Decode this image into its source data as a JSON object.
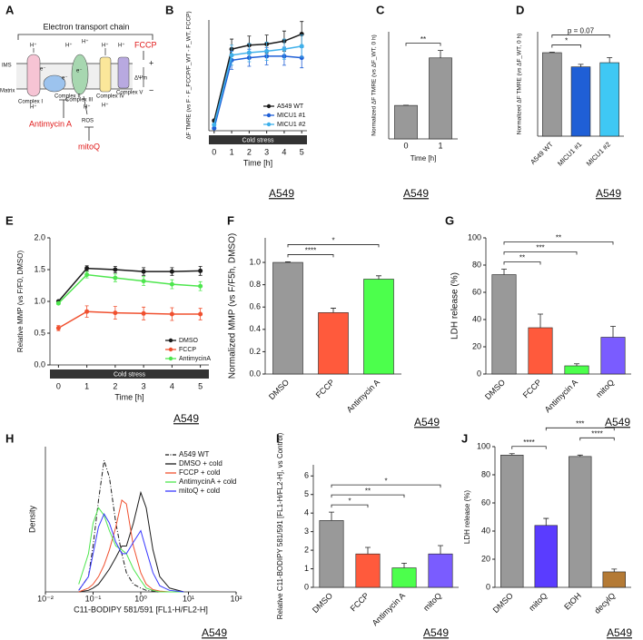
{
  "diagram": {
    "panel": "A",
    "title": "Electron transport chain",
    "ims": "IMS",
    "matrix": "Matrix",
    "complexes": [
      "Complex I",
      "Complex II",
      "Complex III",
      "Complex IV",
      "Complex V"
    ],
    "uncoupler": "FCCP",
    "potential": "ΔΨm",
    "plus": "+",
    "minus": "−",
    "inhibitor": "Antimycin A",
    "ros": "ROS",
    "antioxidant": "mitoQ",
    "protons": [
      "H⁺",
      "H⁺",
      "H⁺",
      "H⁺",
      "H⁺",
      "H⁺",
      "H⁺",
      "H⁺"
    ],
    "electrons": [
      "e⁻",
      "e⁻",
      "e⁻"
    ]
  },
  "chart_data": [
    {
      "panel": "B",
      "type": "line",
      "cell_line": "A549",
      "ylabel": "ΔF TMRE (vs F - F_FCCP/F_WT - F_WT, FCCP)",
      "xlabel": "Time [h]",
      "band_label": "Cold stress",
      "x": [
        0,
        1,
        2,
        3,
        4,
        5
      ],
      "xlim": [
        -0.3,
        5.3
      ],
      "xticks": [
        0,
        1,
        2,
        3,
        4,
        5
      ],
      "ylim": [
        0.8,
        3.0
      ],
      "legend": "lower right",
      "series": [
        {
          "name": "A549 WT",
          "color": "#1a1a1a",
          "values": [
            1.0,
            2.42,
            2.5,
            2.52,
            2.58,
            2.72
          ],
          "errors": [
            0.02,
            0.2,
            0.18,
            0.18,
            0.2,
            0.25
          ]
        },
        {
          "name": "MICU1 #1",
          "color": "#1f5fd6",
          "values": [
            0.85,
            2.2,
            2.25,
            2.28,
            2.28,
            2.25
          ],
          "errors": [
            0.02,
            0.18,
            0.17,
            0.17,
            0.18,
            0.2
          ]
        },
        {
          "name": "MICU1 #2",
          "color": "#3fb0ea",
          "values": [
            0.92,
            2.3,
            2.35,
            2.38,
            2.42,
            2.48
          ],
          "errors": [
            0.02,
            0.2,
            0.18,
            0.18,
            0.2,
            0.22
          ]
        }
      ]
    },
    {
      "panel": "C",
      "type": "bar",
      "cell_line": "A549",
      "ylabel": "Normalized ΔF TMRE (vs ΔF_WT, 0 h)",
      "xlabel": "Time [h]",
      "categories": [
        "0",
        "1"
      ],
      "values": [
        1.0,
        2.42
      ],
      "errors": [
        0.005,
        0.22
      ],
      "colors": [
        "#999999",
        "#999999"
      ],
      "ylim": [
        0,
        3.2
      ],
      "significance": [
        {
          "label": "**",
          "groups": [
            "0",
            "1"
          ]
        }
      ]
    },
    {
      "panel": "D",
      "type": "bar",
      "cell_line": "A549",
      "ylabel": "Normalized ΔF TMRE (vs ΔF_WT, 0 h)",
      "categories": [
        "A549 WT",
        "MICU1 #1",
        "MICU1 #2"
      ],
      "values": [
        1.0,
        0.83,
        0.88
      ],
      "errors": [
        0.005,
        0.03,
        0.06
      ],
      "colors": [
        "#999999",
        "#1f5fd6",
        "#3fc8f4"
      ],
      "ylim": [
        0,
        1.25
      ],
      "significance": [
        {
          "label": "*",
          "groups": [
            "A549 WT",
            "MICU1 #1"
          ]
        },
        {
          "label": "p = 0.07",
          "groups": [
            "A549 WT",
            "MICU1 #2"
          ]
        }
      ]
    },
    {
      "panel": "E",
      "type": "line",
      "cell_line": "A549",
      "ylabel": "Relative MMP (vs F/F0, DMSO)",
      "xlabel": "Time [h]",
      "band_label": "Cold stress",
      "x": [
        0,
        1,
        2,
        3,
        4,
        5
      ],
      "xlim": [
        -0.3,
        5.3
      ],
      "xticks": [
        0,
        1,
        2,
        3,
        4,
        5
      ],
      "ylim": [
        0,
        2
      ],
      "yticks": [
        {
          "value": 0,
          "label": "0.0"
        },
        0.5,
        {
          "value": 1,
          "label": "1.0"
        },
        1.5,
        {
          "value": 2,
          "label": "2.0"
        }
      ],
      "legend": "lower right",
      "series": [
        {
          "name": "DMSO",
          "color": "#1a1a1a",
          "values": [
            1.0,
            1.52,
            1.5,
            1.47,
            1.47,
            1.48
          ],
          "errors": [
            0.01,
            0.04,
            0.05,
            0.06,
            0.06,
            0.07
          ]
        },
        {
          "name": "FCCP",
          "color": "#f0502f",
          "values": [
            0.58,
            0.84,
            0.82,
            0.81,
            0.8,
            0.8
          ],
          "errors": [
            0.04,
            0.09,
            0.1,
            0.1,
            0.1,
            0.09
          ]
        },
        {
          "name": "AntimycinA",
          "color": "#4ee64e",
          "values": [
            0.97,
            1.42,
            1.37,
            1.32,
            1.27,
            1.24
          ],
          "errors": [
            0.02,
            0.05,
            0.06,
            0.07,
            0.07,
            0.07
          ]
        }
      ]
    },
    {
      "panel": "F",
      "type": "bar",
      "cell_line": "A549",
      "ylabel": "Normalized MMP (vs F/F5h, DMSO)",
      "categories": [
        "DMSO",
        "FCCP",
        "Antimycin A"
      ],
      "values": [
        1.0,
        0.55,
        0.85
      ],
      "errors": [
        0.005,
        0.04,
        0.03
      ],
      "colors": [
        "#999999",
        "#ff5a3c",
        "#4cff4c"
      ],
      "ylim": [
        0,
        1.22
      ],
      "yticks": [
        {
          "value": 0,
          "label": "0.0"
        },
        0.2,
        0.4,
        0.6,
        0.8,
        {
          "value": 1,
          "label": "1.0"
        }
      ],
      "significance": [
        {
          "label": "****",
          "groups": [
            "DMSO",
            "FCCP"
          ]
        },
        {
          "label": "*",
          "groups": [
            "DMSO",
            "Antimycin A"
          ]
        }
      ]
    },
    {
      "panel": "G",
      "type": "bar",
      "cell_line": "A549",
      "ylabel": "LDH release (%)",
      "categories": [
        "DMSO",
        "FCCP",
        "Antimycin A",
        "mitoQ"
      ],
      "values": [
        73,
        34,
        6,
        27
      ],
      "errors": [
        4,
        10,
        1.5,
        8
      ],
      "colors": [
        "#999999",
        "#ff5a3c",
        "#4cff4c",
        "#7a5cff"
      ],
      "ylim": [
        0,
        100
      ],
      "yticks": [
        0,
        20,
        40,
        60,
        80,
        100
      ],
      "significance": [
        {
          "label": "**",
          "groups": [
            "DMSO",
            "FCCP"
          ]
        },
        {
          "label": "***",
          "groups": [
            "DMSO",
            "Antimycin A"
          ]
        },
        {
          "label": "**",
          "groups": [
            "DMSO",
            "mitoQ"
          ]
        }
      ]
    },
    {
      "panel": "H",
      "type": "density",
      "cell_line": "A549",
      "ylabel": "Density",
      "xlabel": "C11-BODIPY 581/591 [FL1-H/FL2-H]",
      "xscale": "log",
      "x": [
        0.05,
        0.08,
        0.1,
        0.13,
        0.17,
        0.22,
        0.3,
        0.4,
        0.5,
        0.7,
        1,
        1.3,
        1.8,
        2.5,
        4,
        8
      ],
      "xlim": [
        0.01,
        100
      ],
      "ylim": [
        0,
        1.9
      ],
      "xticks": [
        {
          "value": 0.01,
          "label": "10⁻²"
        },
        {
          "value": 0.1,
          "label": "10⁻¹"
        },
        {
          "value": 1,
          "label": "10⁰"
        },
        {
          "value": 10,
          "label": "10¹"
        },
        {
          "value": 100,
          "label": "10²"
        }
      ],
      "legend": "upper right",
      "series": [
        {
          "name": "A549 WT",
          "color": "#1a1a1a",
          "line_style": "dashdot",
          "values": [
            0.02,
            0.2,
            0.6,
            1.2,
            1.72,
            1.5,
            0.9,
            0.5,
            0.25,
            0.1,
            0.05,
            0.02,
            0.01,
            0,
            0,
            0
          ]
        },
        {
          "name": "DMSO + cold",
          "color": "#1a1a1a",
          "values": [
            0,
            0.02,
            0.05,
            0.1,
            0.2,
            0.3,
            0.45,
            0.6,
            0.6,
            0.9,
            1.3,
            1.1,
            0.55,
            0.2,
            0.05,
            0
          ]
        },
        {
          "name": "FCCP + cold",
          "color": "#f0502f",
          "values": [
            0,
            0.05,
            0.1,
            0.2,
            0.35,
            0.55,
            0.85,
            1.2,
            1.15,
            0.6,
            0.25,
            0.1,
            0.03,
            0.01,
            0,
            0
          ]
        },
        {
          "name": "AntimycinA + cold",
          "color": "#4ee64e",
          "values": [
            0.1,
            0.5,
            0.9,
            1.1,
            1.0,
            0.8,
            0.6,
            0.55,
            0.5,
            0.3,
            0.15,
            0.05,
            0.02,
            0,
            0,
            0
          ]
        },
        {
          "name": "mitoQ + cold",
          "color": "#3a3aff",
          "values": [
            0.02,
            0.2,
            0.5,
            0.85,
            1.02,
            0.9,
            0.65,
            0.5,
            0.5,
            0.65,
            0.8,
            0.55,
            0.25,
            0.08,
            0.02,
            0
          ]
        }
      ]
    },
    {
      "panel": "I",
      "type": "bar",
      "cell_line": "A549",
      "ylabel": "Relative C11-BODIPY 581/591 [FL1-H/FL2-H], vs Control)",
      "categories": [
        "DMSO",
        "FCCP",
        "Antimycin A",
        "mitoQ"
      ],
      "values": [
        3.6,
        1.8,
        1.05,
        1.8
      ],
      "errors": [
        0.45,
        0.35,
        0.25,
        0.45
      ],
      "colors": [
        "#999999",
        "#ff5a3c",
        "#4cff4c",
        "#7a5cff"
      ],
      "ylim": [
        0,
        6.6
      ],
      "yticks": [
        0,
        1,
        2,
        3,
        4,
        5,
        6
      ],
      "significance": [
        {
          "label": "*",
          "groups": [
            "DMSO",
            "FCCP"
          ]
        },
        {
          "label": "**",
          "groups": [
            "DMSO",
            "Antimycin A"
          ]
        },
        {
          "label": "*",
          "groups": [
            "DMSO",
            "mitoQ"
          ]
        }
      ]
    },
    {
      "panel": "J",
      "type": "bar",
      "cell_line": "A549",
      "ylabel": "LDH release (%)",
      "categories": [
        "DMSO",
        "mitoQ",
        "EtOH",
        "decylQ"
      ],
      "values": [
        94,
        44,
        93,
        11
      ],
      "errors": [
        1,
        5,
        1,
        2
      ],
      "colors": [
        "#999999",
        "#5a3cff",
        "#999999",
        "#b47a35"
      ],
      "ylim": [
        0,
        100
      ],
      "yticks": [
        0,
        20,
        40,
        60,
        80,
        100
      ],
      "significance": [
        {
          "label": "****",
          "groups": [
            "DMSO",
            "mitoQ"
          ]
        },
        {
          "label": "****",
          "groups": [
            "EtOH",
            "decylQ"
          ]
        },
        {
          "label": "***",
          "groups": [
            "mitoQ",
            "decylQ"
          ]
        }
      ]
    }
  ]
}
